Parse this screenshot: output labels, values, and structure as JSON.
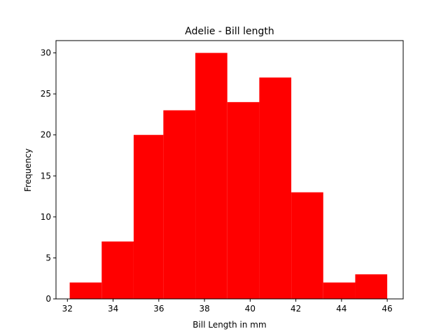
{
  "chart_data": {
    "type": "bar",
    "title": "Adelie - Bill length",
    "xlabel": "Bill Length in mm",
    "ylabel": "Frequency",
    "bar_color": "#ff0000",
    "bins": [
      {
        "x0": 32.1,
        "x1": 33.5,
        "value": 2
      },
      {
        "x0": 33.5,
        "x1": 34.9,
        "value": 7
      },
      {
        "x0": 34.9,
        "x1": 36.2,
        "value": 20
      },
      {
        "x0": 36.2,
        "x1": 37.6,
        "value": 23
      },
      {
        "x0": 37.6,
        "x1": 39.0,
        "value": 30
      },
      {
        "x0": 39.0,
        "x1": 40.4,
        "value": 24
      },
      {
        "x0": 40.4,
        "x1": 41.8,
        "value": 27
      },
      {
        "x0": 41.8,
        "x1": 43.2,
        "value": 13
      },
      {
        "x0": 43.2,
        "x1": 44.6,
        "value": 2
      },
      {
        "x0": 44.6,
        "x1": 46.0,
        "value": 3
      }
    ],
    "xlim": [
      31.5,
      46.7
    ],
    "ylim": [
      0,
      31.5
    ],
    "xticks": [
      "32",
      "34",
      "36",
      "38",
      "40",
      "42",
      "44",
      "46"
    ],
    "yticks": [
      "0",
      "5",
      "10",
      "15",
      "20",
      "25",
      "30"
    ],
    "grid": false,
    "legend": "none"
  }
}
